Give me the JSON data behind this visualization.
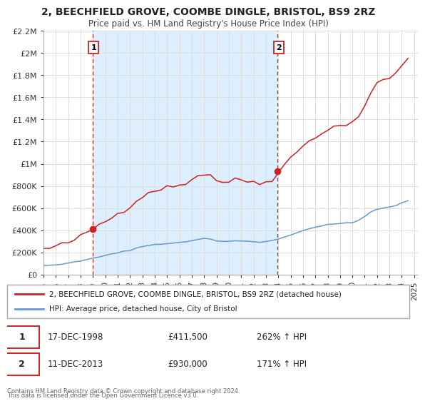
{
  "title": "2, BEECHFIELD GROVE, COOMBE DINGLE, BRISTOL, BS9 2RZ",
  "subtitle": "Price paid vs. HM Land Registry's House Price Index (HPI)",
  "ylim": [
    0,
    2200000
  ],
  "xlim_start": 1995.0,
  "xlim_end": 2025.3,
  "yticks": [
    0,
    200000,
    400000,
    600000,
    800000,
    1000000,
    1200000,
    1400000,
    1600000,
    1800000,
    2000000,
    2200000
  ],
  "ytick_labels": [
    "£0",
    "£200K",
    "£400K",
    "£600K",
    "£800K",
    "£1M",
    "£1.2M",
    "£1.4M",
    "£1.6M",
    "£1.8M",
    "£2M",
    "£2.2M"
  ],
  "xticks": [
    1995,
    1996,
    1997,
    1998,
    1999,
    2000,
    2001,
    2002,
    2003,
    2004,
    2005,
    2006,
    2007,
    2008,
    2009,
    2010,
    2011,
    2012,
    2013,
    2014,
    2015,
    2016,
    2017,
    2018,
    2019,
    2020,
    2021,
    2022,
    2023,
    2024,
    2025
  ],
  "sale1_x": 1998.96,
  "sale1_y": 411500,
  "sale1_label": "1",
  "sale1_date": "17-DEC-1998",
  "sale1_price": "£411,500",
  "sale1_hpi": "262% ↑ HPI",
  "sale2_x": 2013.95,
  "sale2_y": 930000,
  "sale2_label": "2",
  "sale2_date": "11-DEC-2013",
  "sale2_price": "£930,000",
  "sale2_hpi": "171% ↑ HPI",
  "line1_color": "#cc2222",
  "line2_color": "#6699cc",
  "shaded_color": "#ddeeff",
  "bg_color": "#ffffff",
  "grid_color": "#dddddd",
  "legend1_label": "2, BEECHFIELD GROVE, COOMBE DINGLE, BRISTOL, BS9 2RZ (detached house)",
  "legend2_label": "HPI: Average price, detached house, City of Bristol",
  "footer1": "Contains HM Land Registry data © Crown copyright and database right 2024.",
  "footer2": "This data is licensed under the Open Government Licence v3.0.",
  "hpi_years": [
    1995.0,
    1995.5,
    1996.0,
    1996.5,
    1997.0,
    1997.5,
    1998.0,
    1998.5,
    1999.0,
    1999.5,
    2000.0,
    2000.5,
    2001.0,
    2001.5,
    2002.0,
    2002.5,
    2003.0,
    2003.5,
    2004.0,
    2004.5,
    2005.0,
    2005.5,
    2006.0,
    2006.5,
    2007.0,
    2007.5,
    2008.0,
    2008.5,
    2009.0,
    2009.5,
    2010.0,
    2010.5,
    2011.0,
    2011.5,
    2012.0,
    2012.5,
    2013.0,
    2013.5,
    2014.0,
    2014.5,
    2015.0,
    2015.5,
    2016.0,
    2016.5,
    2017.0,
    2017.5,
    2018.0,
    2018.5,
    2019.0,
    2019.5,
    2020.0,
    2020.5,
    2021.0,
    2021.5,
    2022.0,
    2022.5,
    2023.0,
    2023.5,
    2024.0,
    2024.5
  ],
  "hpi_vals": [
    82000,
    85000,
    90000,
    96000,
    103000,
    112000,
    122000,
    133000,
    148000,
    160000,
    172000,
    183000,
    196000,
    208000,
    222000,
    238000,
    252000,
    263000,
    272000,
    278000,
    280000,
    283000,
    288000,
    296000,
    308000,
    318000,
    325000,
    320000,
    305000,
    298000,
    300000,
    303000,
    305000,
    302000,
    297000,
    295000,
    298000,
    308000,
    320000,
    340000,
    360000,
    378000,
    398000,
    415000,
    428000,
    438000,
    448000,
    455000,
    460000,
    468000,
    472000,
    490000,
    525000,
    560000,
    590000,
    600000,
    610000,
    625000,
    645000,
    665000
  ]
}
